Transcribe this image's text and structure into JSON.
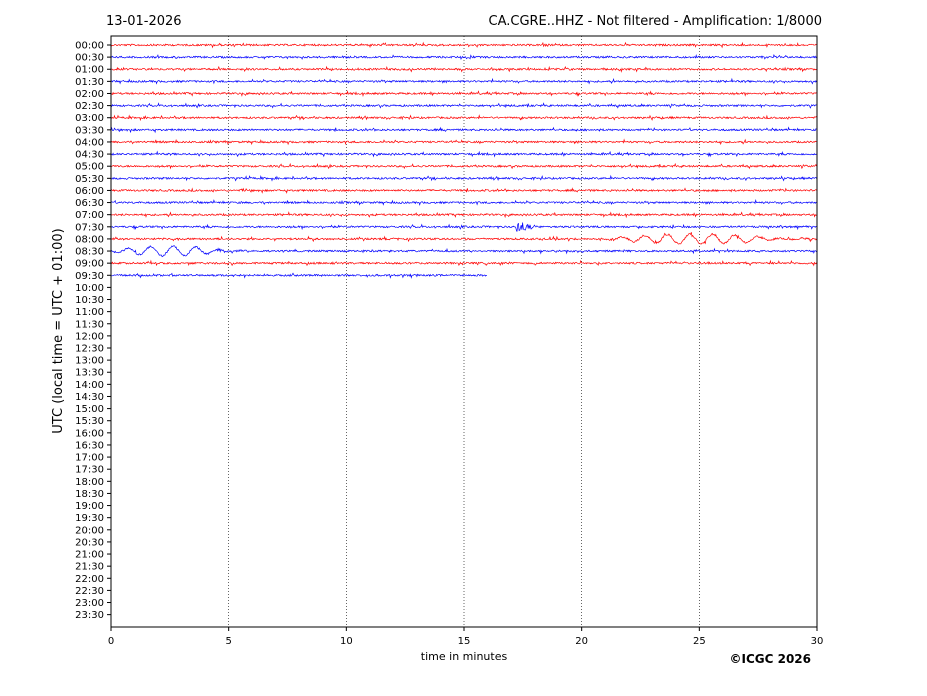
{
  "header": {
    "date": "13-01-2026",
    "station_title": "CA.CGRE..HHZ - Not filtered - Amplification: 1/8000"
  },
  "copyright": "©ICGC 2026",
  "chart_data": {
    "type": "line",
    "title": "CA.CGRE..HHZ - Not filtered - Amplification: 1/8000",
    "xlabel": "time in minutes",
    "ylabel": "UTC (local time = UTC + 01:00)",
    "xlim": [
      0,
      30
    ],
    "x_ticks": [
      "0",
      "5",
      "10",
      "15",
      "20",
      "25",
      "30"
    ],
    "x_tick_values": [
      0,
      5,
      10,
      15,
      20,
      25,
      30
    ],
    "grid": "vertical dotted lines at 5-minute ticks",
    "y_rows": [
      "00:00",
      "00:30",
      "01:00",
      "01:30",
      "02:00",
      "02:30",
      "03:00",
      "03:30",
      "04:00",
      "04:30",
      "05:00",
      "05:30",
      "06:00",
      "06:30",
      "07:00",
      "07:30",
      "08:00",
      "08:30",
      "09:00",
      "09:30",
      "10:00",
      "10:30",
      "11:00",
      "11:30",
      "12:00",
      "12:30",
      "13:00",
      "13:30",
      "14:00",
      "14:30",
      "15:00",
      "15:30",
      "16:00",
      "16:30",
      "17:00",
      "17:30",
      "18:00",
      "18:30",
      "19:00",
      "19:30",
      "20:00",
      "20:30",
      "21:00",
      "21:30",
      "22:00",
      "22:30",
      "23:00",
      "23:30"
    ],
    "series_colors": [
      "#ff0000",
      "#0000ff"
    ],
    "traces": [
      {
        "row": "00:00",
        "color": "#ff0000",
        "x_end": 30
      },
      {
        "row": "00:30",
        "color": "#0000ff",
        "x_end": 30
      },
      {
        "row": "01:00",
        "color": "#ff0000",
        "x_end": 30
      },
      {
        "row": "01:30",
        "color": "#0000ff",
        "x_end": 30
      },
      {
        "row": "02:00",
        "color": "#ff0000",
        "x_end": 30
      },
      {
        "row": "02:30",
        "color": "#0000ff",
        "x_end": 30
      },
      {
        "row": "03:00",
        "color": "#ff0000",
        "x_end": 30
      },
      {
        "row": "03:30",
        "color": "#0000ff",
        "x_end": 30
      },
      {
        "row": "04:00",
        "color": "#ff0000",
        "x_end": 30
      },
      {
        "row": "04:30",
        "color": "#0000ff",
        "x_end": 30
      },
      {
        "row": "05:00",
        "color": "#ff0000",
        "x_end": 30
      },
      {
        "row": "05:30",
        "color": "#0000ff",
        "x_end": 30
      },
      {
        "row": "06:00",
        "color": "#ff0000",
        "x_end": 30
      },
      {
        "row": "06:30",
        "color": "#0000ff",
        "x_end": 30
      },
      {
        "row": "07:00",
        "color": "#ff0000",
        "x_end": 30
      },
      {
        "row": "07:30",
        "color": "#0000ff",
        "x_end": 30,
        "events": [
          {
            "x_start": 17.2,
            "x_end": 18.0,
            "amplitude": "high"
          }
        ]
      },
      {
        "row": "08:00",
        "color": "#ff0000",
        "x_end": 30,
        "events": [
          {
            "x_start": 21.0,
            "x_end": 30.0,
            "amplitude": "wave"
          }
        ]
      },
      {
        "row": "08:30",
        "color": "#0000ff",
        "x_end": 30,
        "events": [
          {
            "x_start": 0.0,
            "x_end": 6.0,
            "amplitude": "wave"
          }
        ]
      },
      {
        "row": "09:00",
        "color": "#ff0000",
        "x_end": 30
      },
      {
        "row": "09:30",
        "color": "#0000ff",
        "x_end": 16
      }
    ]
  }
}
